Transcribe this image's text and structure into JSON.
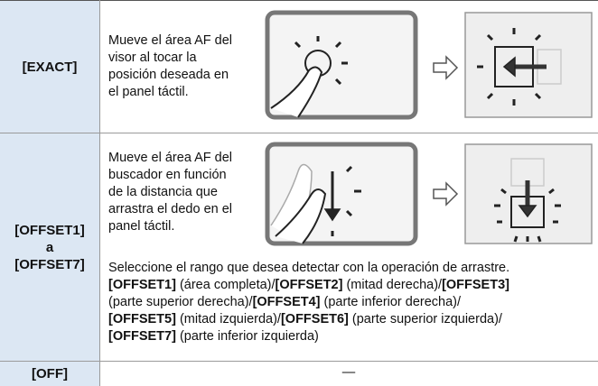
{
  "table": {
    "rows": [
      {
        "label": [
          "[EXACT]"
        ],
        "description": [
          "Mueve el área AF del",
          "visor al tocar la",
          "posición deseada en",
          "el panel táctil."
        ]
      },
      {
        "label": [
          "[OFFSET1]",
          "a",
          "[OFFSET7]"
        ],
        "description": [
          "Mueve el área AF del",
          "buscador en función",
          "de la distancia que",
          "arrastra el dedo en el",
          "panel táctil."
        ],
        "note_lines": [
          [
            {
              "text": "Seleccione el rango que desea detectar con la operación de arrastre.",
              "bold": false
            }
          ],
          [
            {
              "text": "[OFFSET1]",
              "bold": true
            },
            {
              "text": " (área completa)/",
              "bold": false
            },
            {
              "text": "[OFFSET2]",
              "bold": true
            },
            {
              "text": " (mitad derecha)/",
              "bold": false
            },
            {
              "text": "[OFFSET3]",
              "bold": true
            }
          ],
          [
            {
              "text": "(parte superior derecha)/",
              "bold": false
            },
            {
              "text": "[OFFSET4]",
              "bold": true
            },
            {
              "text": " (parte inferior derecha)/",
              "bold": false
            }
          ],
          [
            {
              "text": "[OFFSET5]",
              "bold": true
            },
            {
              "text": " (mitad izquierda)/",
              "bold": false
            },
            {
              "text": "[OFFSET6]",
              "bold": true
            },
            {
              "text": " (parte superior izquierda)/",
              "bold": false
            }
          ],
          [
            {
              "text": "[OFFSET7]",
              "bold": true
            },
            {
              "text": " (parte inferior izquierda)",
              "bold": false
            }
          ]
        ]
      },
      {
        "label": [
          "[OFF]"
        ],
        "description": [
          "—"
        ]
      }
    ]
  }
}
